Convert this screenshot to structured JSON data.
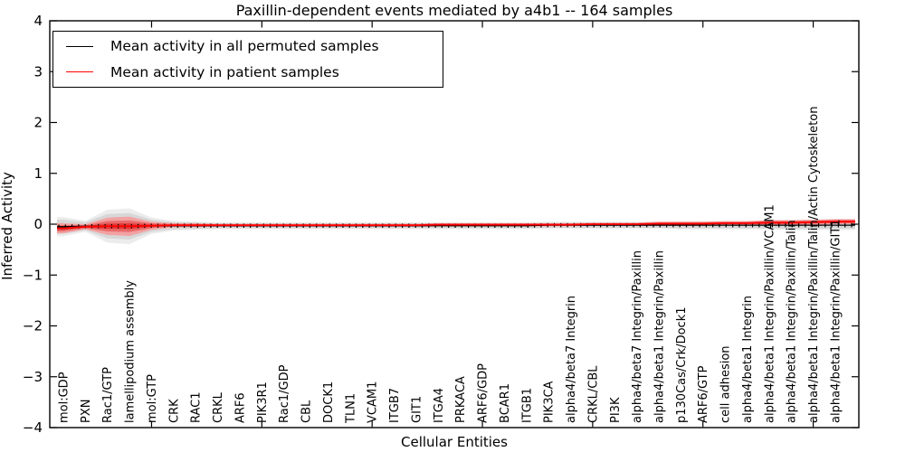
{
  "figure": {
    "title": "Paxillin-dependent events mediated by a4b1 -- 164 samples",
    "xlabel": "Cellular Entities",
    "ylabel": "Inferred Activity"
  },
  "colors": {
    "permuted_line": "#000000",
    "patient_line": "#ff0000",
    "patient_band_outer": "#f2a2a2",
    "patient_band_mid": "#e96a6a",
    "patient_band_core": "#e03a3a",
    "permuted_band": "#d7d7d7",
    "permuted_band_halo": "#ececec",
    "frame": "#000000"
  },
  "chart_data": {
    "type": "line",
    "title": "Paxillin-dependent events mediated by a4b1 -- 164 samples",
    "xlabel": "Cellular Entities",
    "ylabel": "Inferred Activity",
    "ylim": [
      -4,
      4
    ],
    "yticks": [
      -4,
      -3,
      -2,
      -1,
      0,
      1,
      2,
      3,
      4
    ],
    "xticks_major_positions": [
      5,
      10,
      15,
      20,
      25,
      30,
      35
    ],
    "grid": false,
    "legend_position": "upper left",
    "categories": [
      "mol:GDP",
      "PXN",
      "Rac1/GTP",
      "lamellipodium assembly",
      "mol:GTP",
      "CRK",
      "RAC1",
      "CRKL",
      "ARF6",
      "PIK3R1",
      "Rac1/GDP",
      "CBL",
      "DOCK1",
      "TLN1",
      "VCAM1",
      "ITGB7",
      "GIT1",
      "ITGA4",
      "PRKACA",
      "ARF6/GDP",
      "BCAR1",
      "ITGB1",
      "PIK3CA",
      "alpha4/beta7 Integrin",
      "CRKL/CBL",
      "PI3K",
      "alpha4/beta7 Integrin/Paxillin",
      "alpha4/beta1 Integrin/Paxillin",
      "p130Cas/Crk/Dock1",
      "ARF6/GTP",
      "cell adhesion",
      "alpha4/beta1 Integrin",
      "alpha4/beta1 Integrin/Paxillin/VCAM1",
      "alpha4/beta1 Integrin/Paxillin/Talin",
      "alpha4/beta1 Integrin/Paxillin/Talin/Actin Cytoskeleton",
      "alpha4/beta1 Integrin/Paxillin/GIT1"
    ],
    "series": [
      {
        "name": "Mean activity in all permuted samples",
        "color": "#000000",
        "values": [
          -0.05,
          -0.04,
          -0.04,
          -0.04,
          -0.03,
          -0.03,
          -0.03,
          -0.03,
          -0.03,
          -0.03,
          -0.03,
          -0.03,
          -0.03,
          -0.03,
          -0.03,
          -0.03,
          -0.03,
          -0.03,
          -0.03,
          -0.03,
          -0.03,
          -0.03,
          -0.02,
          -0.02,
          -0.02,
          -0.02,
          -0.02,
          -0.02,
          -0.02,
          -0.02,
          -0.02,
          -0.02,
          -0.02,
          -0.02,
          -0.02,
          -0.02
        ],
        "band_halfwidth": [
          0.14,
          0.08,
          0.24,
          0.26,
          0.12,
          0.07,
          0.06,
          0.05,
          0.05,
          0.05,
          0.05,
          0.05,
          0.05,
          0.05,
          0.05,
          0.05,
          0.05,
          0.05,
          0.05,
          0.05,
          0.05,
          0.05,
          0.05,
          0.05,
          0.05,
          0.05,
          0.05,
          0.05,
          0.06,
          0.06,
          0.06,
          0.06,
          0.06,
          0.07,
          0.07,
          0.07
        ]
      },
      {
        "name": "Mean activity in patient samples",
        "color": "#ff0000",
        "values": [
          -0.08,
          -0.05,
          -0.04,
          -0.04,
          -0.03,
          -0.02,
          -0.02,
          -0.02,
          -0.02,
          -0.02,
          -0.02,
          -0.02,
          -0.02,
          -0.02,
          -0.02,
          -0.02,
          -0.02,
          -0.01,
          -0.01,
          -0.01,
          -0.01,
          -0.01,
          -0.01,
          -0.01,
          0.0,
          0.0,
          0.0,
          0.01,
          0.01,
          0.01,
          0.02,
          0.02,
          0.03,
          0.03,
          0.04,
          0.05
        ],
        "band_halfwidth": [
          0.1,
          0.05,
          0.17,
          0.19,
          0.08,
          0.04,
          0.04,
          0.03,
          0.03,
          0.03,
          0.03,
          0.03,
          0.03,
          0.03,
          0.03,
          0.03,
          0.03,
          0.03,
          0.03,
          0.03,
          0.03,
          0.03,
          0.03,
          0.03,
          0.03,
          0.03,
          0.03,
          0.04,
          0.04,
          0.04,
          0.04,
          0.04,
          0.05,
          0.05,
          0.05,
          0.05
        ]
      }
    ]
  }
}
